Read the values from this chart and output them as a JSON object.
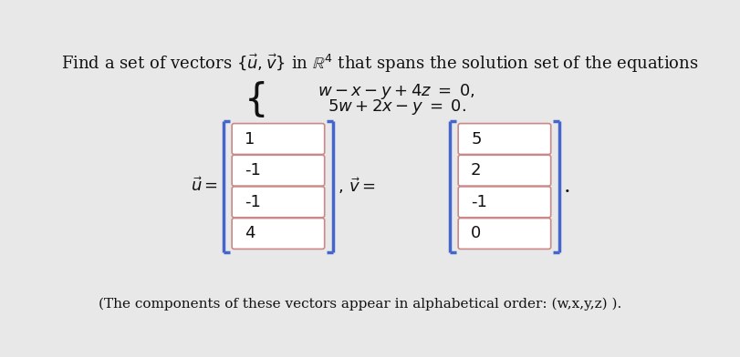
{
  "title_text": "Find a set of vectors $\\{\\vec{u}, \\vec{v}\\}$ in $\\mathbb{R}^4$ that spans the solution set of the equations",
  "eq1": "$w - x - y + 4z \\;=\\; 0,$",
  "eq2": "$5w + 2x - y \\;=\\; 0.$",
  "u_label": "$\\vec{u} =$",
  "v_label": "$,\\, \\vec{v} =$",
  "u_values": [
    "1",
    "-1",
    "-1",
    "4"
  ],
  "v_values": [
    "5",
    "2",
    "-1",
    "0"
  ],
  "footnote": "(The components of these vectors appear in alphabetical order: (w,x,y,z) ).",
  "bg_color": "#e8e8e8",
  "box_fill": "#ffffff",
  "box_border": "#cc8888",
  "bracket_color": "#4466cc",
  "text_color": "#111111",
  "title_fontsize": 13,
  "eq_fontsize": 13,
  "value_fontsize": 13,
  "label_fontsize": 13,
  "footnote_fontsize": 11
}
